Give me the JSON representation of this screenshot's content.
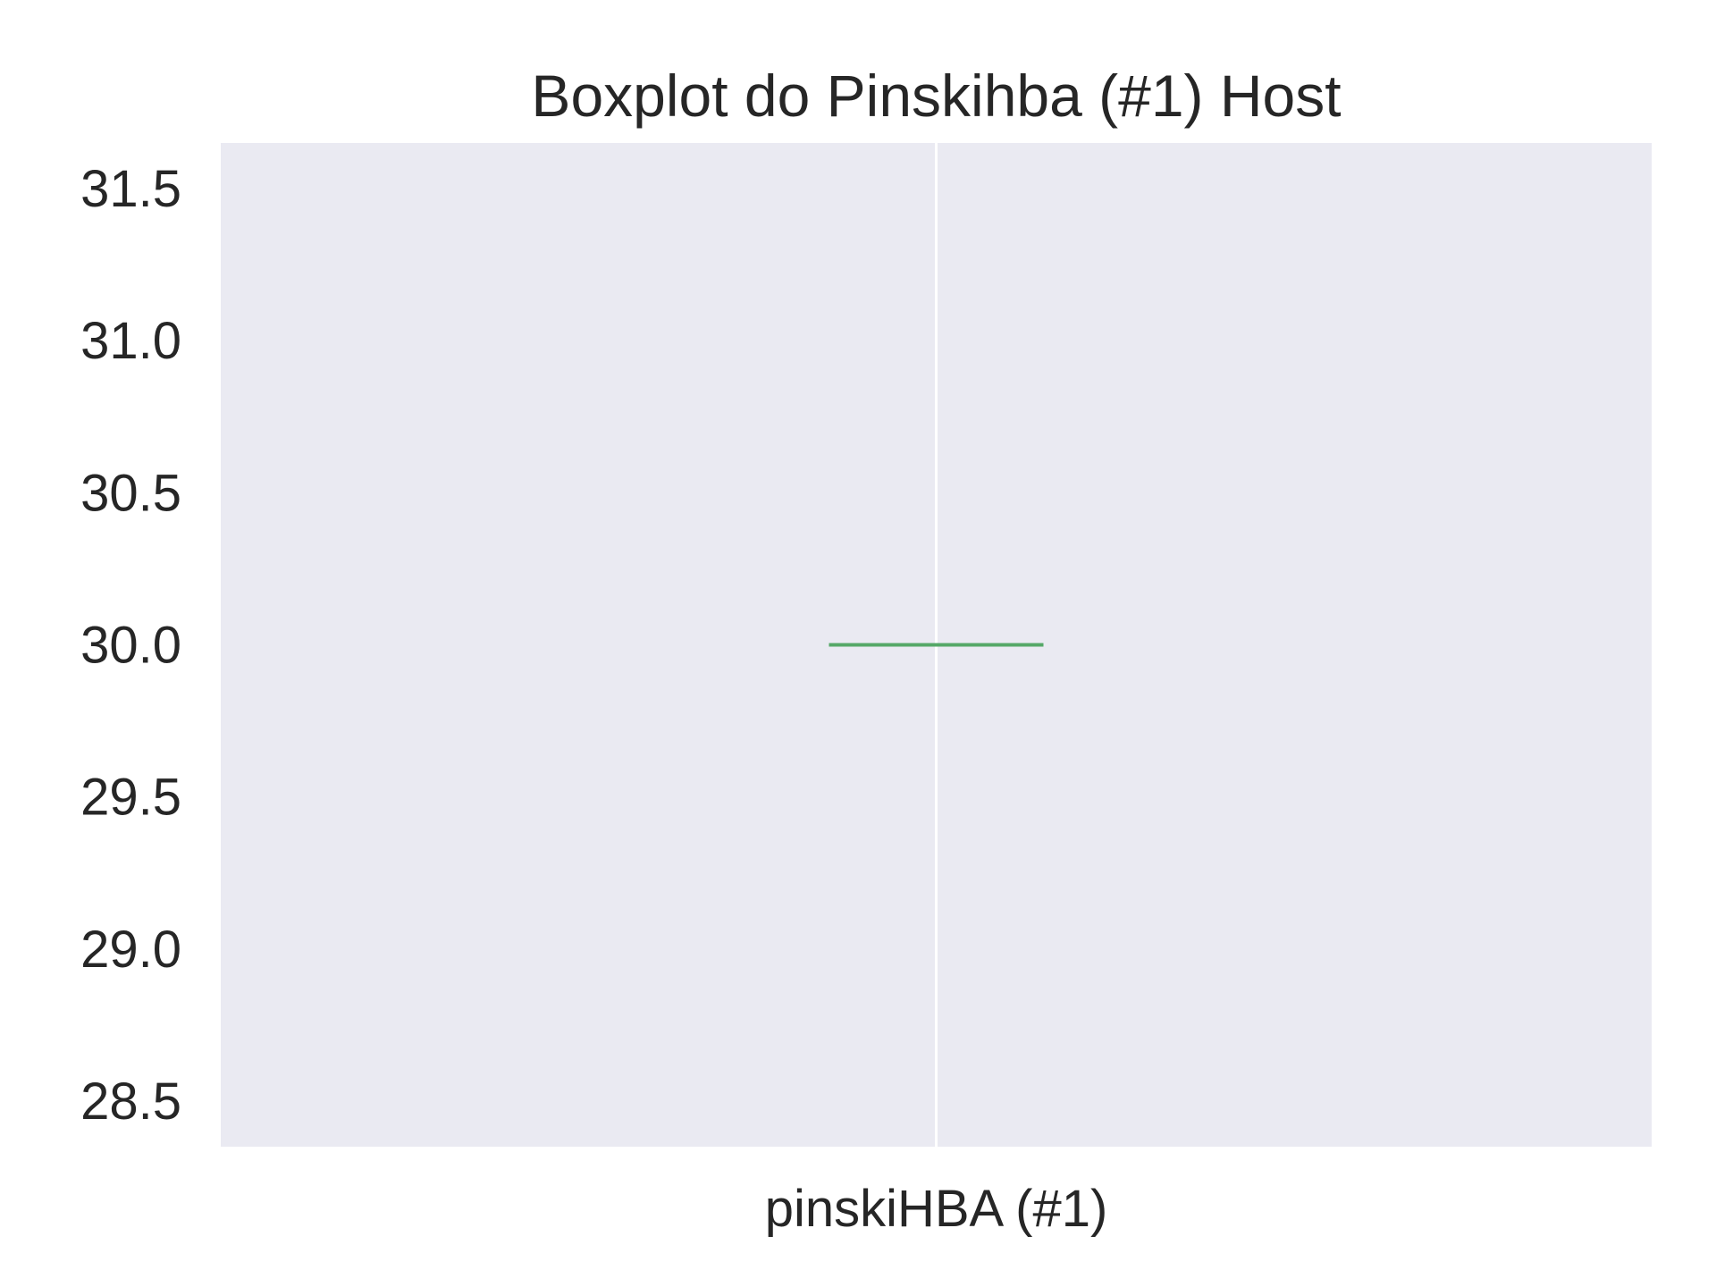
{
  "chart_data": {
    "type": "box",
    "title": "Boxplot do Pinskihba (#1) Host",
    "xlabel": "",
    "ylabel": "",
    "categories": [
      "pinskiHBA (#1)"
    ],
    "series": [
      {
        "values": [
          30.0
        ],
        "min": 30.0,
        "q1": 30.0,
        "median": 30.0,
        "q3": 30.0,
        "max": 30.0
      }
    ],
    "ylim": [
      28.35,
      31.65
    ],
    "yticks": [
      28.5,
      29.0,
      29.5,
      30.0,
      30.5,
      31.0,
      31.5
    ],
    "ytick_labels": [
      "28.5",
      "29.0",
      "29.5",
      "30.0",
      "30.5",
      "31.0",
      "31.5"
    ],
    "grid": true,
    "colors": {
      "plot_background": "#eaeaf2",
      "grid": "#ffffff",
      "box": "#4c72b0",
      "median": "#55a868",
      "text": "#262626"
    }
  }
}
